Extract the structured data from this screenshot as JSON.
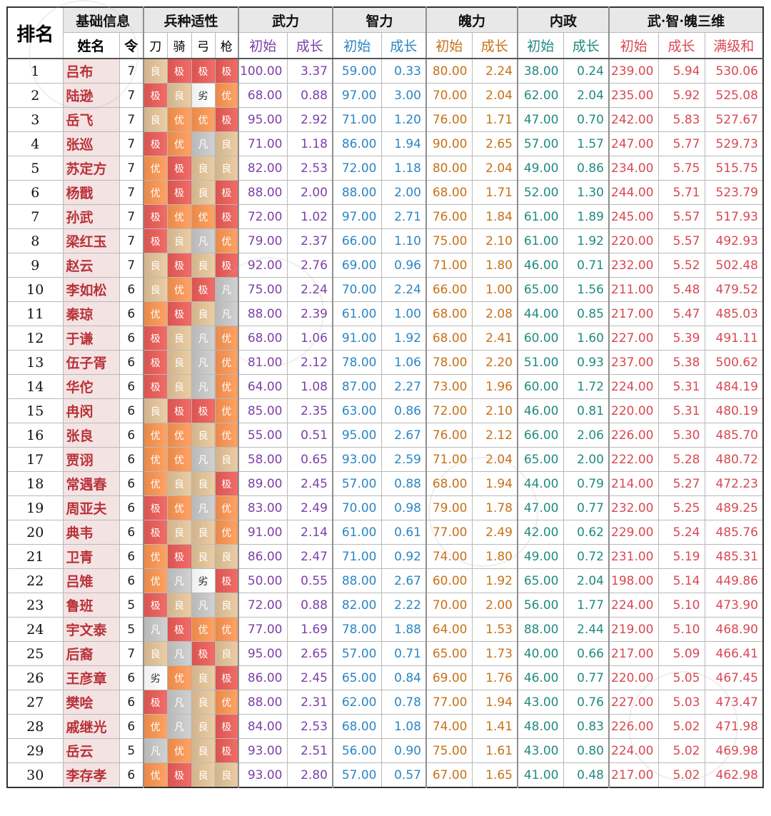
{
  "headers": {
    "rank": "排名",
    "basic_info": "基础信息",
    "name": "姓名",
    "ling": "令",
    "troop_fit": "兵种适性",
    "troops": [
      "刀",
      "骑",
      "弓",
      "枪"
    ],
    "groups": [
      "武力",
      "智力",
      "魄力",
      "内政",
      "武·智·魄三维"
    ],
    "sub_initial": "初始",
    "sub_growth": "成长",
    "sub_max_sum": "满级和"
  },
  "colors": {
    "wu": "#7d3fa8",
    "zhi": "#2b86c4",
    "po": "#c87019",
    "nz": "#218a80",
    "total": "#d94852",
    "apt_极": "#d9534f",
    "apt_优": "#e8894a",
    "apt_良": "#d2b48c",
    "apt_凡": "#b8b8b8",
    "apt_劣": "#efefef"
  },
  "rows": [
    {
      "rank": "1",
      "name": "吕布",
      "ling": "7",
      "apt": [
        "良",
        "极",
        "极",
        "极"
      ],
      "wu": [
        "100.00",
        "3.37"
      ],
      "zhi": [
        "59.00",
        "0.33"
      ],
      "po": [
        "80.00",
        "2.24"
      ],
      "nz": [
        "38.00",
        "0.24"
      ],
      "tot": [
        "239.00",
        "5.94",
        "530.06"
      ]
    },
    {
      "rank": "2",
      "name": "陆逊",
      "ling": "7",
      "apt": [
        "极",
        "良",
        "劣",
        "优"
      ],
      "wu": [
        "68.00",
        "0.88"
      ],
      "zhi": [
        "97.00",
        "3.00"
      ],
      "po": [
        "70.00",
        "2.04"
      ],
      "nz": [
        "62.00",
        "2.04"
      ],
      "tot": [
        "235.00",
        "5.92",
        "525.08"
      ]
    },
    {
      "rank": "3",
      "name": "岳飞",
      "ling": "7",
      "apt": [
        "良",
        "优",
        "优",
        "极"
      ],
      "wu": [
        "95.00",
        "2.92"
      ],
      "zhi": [
        "71.00",
        "1.20"
      ],
      "po": [
        "76.00",
        "1.71"
      ],
      "nz": [
        "47.00",
        "0.70"
      ],
      "tot": [
        "242.00",
        "5.83",
        "527.67"
      ]
    },
    {
      "rank": "4",
      "name": "张巡",
      "ling": "7",
      "apt": [
        "极",
        "优",
        "凡",
        "良"
      ],
      "wu": [
        "71.00",
        "1.18"
      ],
      "zhi": [
        "86.00",
        "1.94"
      ],
      "po": [
        "90.00",
        "2.65"
      ],
      "nz": [
        "57.00",
        "1.57"
      ],
      "tot": [
        "247.00",
        "5.77",
        "529.73"
      ]
    },
    {
      "rank": "5",
      "name": "苏定方",
      "ling": "7",
      "apt": [
        "优",
        "极",
        "良",
        "良"
      ],
      "wu": [
        "82.00",
        "2.53"
      ],
      "zhi": [
        "72.00",
        "1.18"
      ],
      "po": [
        "80.00",
        "2.04"
      ],
      "nz": [
        "49.00",
        "0.86"
      ],
      "tot": [
        "234.00",
        "5.75",
        "515.75"
      ]
    },
    {
      "rank": "6",
      "name": "杨戬",
      "ling": "7",
      "apt": [
        "优",
        "极",
        "良",
        "极"
      ],
      "wu": [
        "88.00",
        "2.00"
      ],
      "zhi": [
        "88.00",
        "2.00"
      ],
      "po": [
        "68.00",
        "1.71"
      ],
      "nz": [
        "52.00",
        "1.30"
      ],
      "tot": [
        "244.00",
        "5.71",
        "523.79"
      ]
    },
    {
      "rank": "7",
      "name": "孙武",
      "ling": "7",
      "apt": [
        "极",
        "优",
        "优",
        "极"
      ],
      "wu": [
        "72.00",
        "1.02"
      ],
      "zhi": [
        "97.00",
        "2.71"
      ],
      "po": [
        "76.00",
        "1.84"
      ],
      "nz": [
        "61.00",
        "1.89"
      ],
      "tot": [
        "245.00",
        "5.57",
        "517.93"
      ]
    },
    {
      "rank": "8",
      "name": "梁红玉",
      "ling": "7",
      "apt": [
        "极",
        "良",
        "凡",
        "优"
      ],
      "wu": [
        "79.00",
        "2.37"
      ],
      "zhi": [
        "66.00",
        "1.10"
      ],
      "po": [
        "75.00",
        "2.10"
      ],
      "nz": [
        "61.00",
        "1.92"
      ],
      "tot": [
        "220.00",
        "5.57",
        "492.93"
      ]
    },
    {
      "rank": "9",
      "name": "赵云",
      "ling": "7",
      "apt": [
        "良",
        "极",
        "良",
        "极"
      ],
      "wu": [
        "92.00",
        "2.76"
      ],
      "zhi": [
        "69.00",
        "0.96"
      ],
      "po": [
        "71.00",
        "1.80"
      ],
      "nz": [
        "46.00",
        "0.71"
      ],
      "tot": [
        "232.00",
        "5.52",
        "502.48"
      ]
    },
    {
      "rank": "10",
      "name": "李如松",
      "ling": "6",
      "apt": [
        "良",
        "优",
        "极",
        "凡"
      ],
      "wu": [
        "75.00",
        "2.24"
      ],
      "zhi": [
        "70.00",
        "2.24"
      ],
      "po": [
        "66.00",
        "1.00"
      ],
      "nz": [
        "65.00",
        "1.56"
      ],
      "tot": [
        "211.00",
        "5.48",
        "479.52"
      ]
    },
    {
      "rank": "11",
      "name": "秦琼",
      "ling": "6",
      "apt": [
        "优",
        "极",
        "良",
        "凡"
      ],
      "wu": [
        "88.00",
        "2.39"
      ],
      "zhi": [
        "61.00",
        "1.00"
      ],
      "po": [
        "68.00",
        "2.08"
      ],
      "nz": [
        "44.00",
        "0.85"
      ],
      "tot": [
        "217.00",
        "5.47",
        "485.03"
      ]
    },
    {
      "rank": "12",
      "name": "于谦",
      "ling": "6",
      "apt": [
        "极",
        "良",
        "凡",
        "优"
      ],
      "wu": [
        "68.00",
        "1.06"
      ],
      "zhi": [
        "91.00",
        "1.92"
      ],
      "po": [
        "68.00",
        "2.41"
      ],
      "nz": [
        "60.00",
        "1.60"
      ],
      "tot": [
        "227.00",
        "5.39",
        "491.11"
      ]
    },
    {
      "rank": "13",
      "name": "伍子胥",
      "ling": "6",
      "apt": [
        "极",
        "良",
        "凡",
        "优"
      ],
      "wu": [
        "81.00",
        "2.12"
      ],
      "zhi": [
        "78.00",
        "1.06"
      ],
      "po": [
        "78.00",
        "2.20"
      ],
      "nz": [
        "51.00",
        "0.93"
      ],
      "tot": [
        "237.00",
        "5.38",
        "500.62"
      ]
    },
    {
      "rank": "14",
      "name": "华佗",
      "ling": "6",
      "apt": [
        "极",
        "良",
        "凡",
        "优"
      ],
      "wu": [
        "64.00",
        "1.08"
      ],
      "zhi": [
        "87.00",
        "2.27"
      ],
      "po": [
        "73.00",
        "1.96"
      ],
      "nz": [
        "60.00",
        "1.72"
      ],
      "tot": [
        "224.00",
        "5.31",
        "484.19"
      ]
    },
    {
      "rank": "15",
      "name": "冉闵",
      "ling": "6",
      "apt": [
        "良",
        "极",
        "极",
        "优"
      ],
      "wu": [
        "85.00",
        "2.35"
      ],
      "zhi": [
        "63.00",
        "0.86"
      ],
      "po": [
        "72.00",
        "2.10"
      ],
      "nz": [
        "46.00",
        "0.81"
      ],
      "tot": [
        "220.00",
        "5.31",
        "480.19"
      ]
    },
    {
      "rank": "16",
      "name": "张良",
      "ling": "6",
      "apt": [
        "优",
        "优",
        "良",
        "优"
      ],
      "wu": [
        "55.00",
        "0.51"
      ],
      "zhi": [
        "95.00",
        "2.67"
      ],
      "po": [
        "76.00",
        "2.12"
      ],
      "nz": [
        "66.00",
        "2.06"
      ],
      "tot": [
        "226.00",
        "5.30",
        "485.70"
      ]
    },
    {
      "rank": "17",
      "name": "贾诩",
      "ling": "6",
      "apt": [
        "优",
        "优",
        "凡",
        "良"
      ],
      "wu": [
        "58.00",
        "0.65"
      ],
      "zhi": [
        "93.00",
        "2.59"
      ],
      "po": [
        "71.00",
        "2.04"
      ],
      "nz": [
        "65.00",
        "2.00"
      ],
      "tot": [
        "222.00",
        "5.28",
        "480.72"
      ]
    },
    {
      "rank": "18",
      "name": "常遇春",
      "ling": "6",
      "apt": [
        "优",
        "良",
        "良",
        "极"
      ],
      "wu": [
        "89.00",
        "2.45"
      ],
      "zhi": [
        "57.00",
        "0.88"
      ],
      "po": [
        "68.00",
        "1.94"
      ],
      "nz": [
        "44.00",
        "0.79"
      ],
      "tot": [
        "214.00",
        "5.27",
        "472.23"
      ]
    },
    {
      "rank": "19",
      "name": "周亚夫",
      "ling": "6",
      "apt": [
        "极",
        "优",
        "凡",
        "优"
      ],
      "wu": [
        "83.00",
        "2.49"
      ],
      "zhi": [
        "70.00",
        "0.98"
      ],
      "po": [
        "79.00",
        "1.78"
      ],
      "nz": [
        "47.00",
        "0.77"
      ],
      "tot": [
        "232.00",
        "5.25",
        "489.25"
      ]
    },
    {
      "rank": "20",
      "name": "典韦",
      "ling": "6",
      "apt": [
        "极",
        "良",
        "良",
        "优"
      ],
      "wu": [
        "91.00",
        "2.14"
      ],
      "zhi": [
        "61.00",
        "0.61"
      ],
      "po": [
        "77.00",
        "2.49"
      ],
      "nz": [
        "42.00",
        "0.62"
      ],
      "tot": [
        "229.00",
        "5.24",
        "485.76"
      ]
    },
    {
      "rank": "21",
      "name": "卫青",
      "ling": "6",
      "apt": [
        "优",
        "极",
        "良",
        "良"
      ],
      "wu": [
        "86.00",
        "2.47"
      ],
      "zhi": [
        "71.00",
        "0.92"
      ],
      "po": [
        "74.00",
        "1.80"
      ],
      "nz": [
        "49.00",
        "0.72"
      ],
      "tot": [
        "231.00",
        "5.19",
        "485.31"
      ]
    },
    {
      "rank": "22",
      "name": "吕雉",
      "ling": "6",
      "apt": [
        "优",
        "凡",
        "劣",
        "极"
      ],
      "wu": [
        "50.00",
        "0.55"
      ],
      "zhi": [
        "88.00",
        "2.67"
      ],
      "po": [
        "60.00",
        "1.92"
      ],
      "nz": [
        "65.00",
        "2.04"
      ],
      "tot": [
        "198.00",
        "5.14",
        "449.86"
      ]
    },
    {
      "rank": "23",
      "name": "鲁班",
      "ling": "5",
      "apt": [
        "极",
        "良",
        "凡",
        "良"
      ],
      "wu": [
        "72.00",
        "0.88"
      ],
      "zhi": [
        "82.00",
        "2.22"
      ],
      "po": [
        "70.00",
        "2.00"
      ],
      "nz": [
        "56.00",
        "1.77"
      ],
      "tot": [
        "224.00",
        "5.10",
        "473.90"
      ]
    },
    {
      "rank": "24",
      "name": "宇文泰",
      "ling": "5",
      "apt": [
        "凡",
        "极",
        "优",
        "优"
      ],
      "wu": [
        "77.00",
        "1.69"
      ],
      "zhi": [
        "78.00",
        "1.88"
      ],
      "po": [
        "64.00",
        "1.53"
      ],
      "nz": [
        "88.00",
        "2.44"
      ],
      "tot": [
        "219.00",
        "5.10",
        "468.90"
      ]
    },
    {
      "rank": "25",
      "name": "后裔",
      "ling": "7",
      "apt": [
        "良",
        "凡",
        "极",
        "良"
      ],
      "wu": [
        "95.00",
        "2.65"
      ],
      "zhi": [
        "57.00",
        "0.71"
      ],
      "po": [
        "65.00",
        "1.73"
      ],
      "nz": [
        "40.00",
        "0.66"
      ],
      "tot": [
        "217.00",
        "5.09",
        "466.41"
      ]
    },
    {
      "rank": "26",
      "name": "王彦章",
      "ling": "6",
      "apt": [
        "劣",
        "优",
        "良",
        "极"
      ],
      "wu": [
        "86.00",
        "2.45"
      ],
      "zhi": [
        "65.00",
        "0.84"
      ],
      "po": [
        "69.00",
        "1.76"
      ],
      "nz": [
        "46.00",
        "0.77"
      ],
      "tot": [
        "220.00",
        "5.05",
        "467.45"
      ]
    },
    {
      "rank": "27",
      "name": "樊哙",
      "ling": "6",
      "apt": [
        "极",
        "凡",
        "良",
        "优"
      ],
      "wu": [
        "88.00",
        "2.31"
      ],
      "zhi": [
        "62.00",
        "0.78"
      ],
      "po": [
        "77.00",
        "1.94"
      ],
      "nz": [
        "43.00",
        "0.76"
      ],
      "tot": [
        "227.00",
        "5.03",
        "473.47"
      ]
    },
    {
      "rank": "28",
      "name": "戚继光",
      "ling": "6",
      "apt": [
        "优",
        "凡",
        "良",
        "极"
      ],
      "wu": [
        "84.00",
        "2.53"
      ],
      "zhi": [
        "68.00",
        "1.08"
      ],
      "po": [
        "74.00",
        "1.41"
      ],
      "nz": [
        "48.00",
        "0.83"
      ],
      "tot": [
        "226.00",
        "5.02",
        "471.98"
      ]
    },
    {
      "rank": "29",
      "name": "岳云",
      "ling": "5",
      "apt": [
        "凡",
        "优",
        "良",
        "极"
      ],
      "wu": [
        "93.00",
        "2.51"
      ],
      "zhi": [
        "56.00",
        "0.90"
      ],
      "po": [
        "75.00",
        "1.61"
      ],
      "nz": [
        "43.00",
        "0.80"
      ],
      "tot": [
        "224.00",
        "5.02",
        "469.98"
      ]
    },
    {
      "rank": "30",
      "name": "李存孝",
      "ling": "6",
      "apt": [
        "优",
        "极",
        "良",
        "良"
      ],
      "wu": [
        "93.00",
        "2.80"
      ],
      "zhi": [
        "57.00",
        "0.57"
      ],
      "po": [
        "67.00",
        "1.65"
      ],
      "nz": [
        "41.00",
        "0.48"
      ],
      "tot": [
        "217.00",
        "5.02",
        "462.98"
      ]
    }
  ]
}
